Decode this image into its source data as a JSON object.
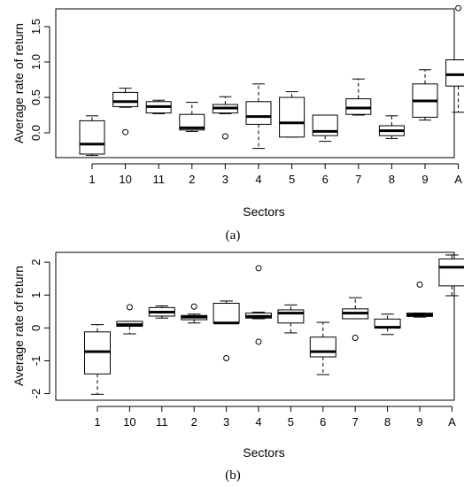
{
  "chart_data": [
    {
      "type": "boxplot",
      "caption": "(a)",
      "xlabel": "Sectors",
      "ylabel": "Average rate of return",
      "ylim": [
        -0.35,
        1.75
      ],
      "yticks": [
        0.0,
        0.5,
        1.0,
        1.5
      ],
      "ytick_labels": [
        "0.0",
        "0.5",
        "1.0",
        "1.5"
      ],
      "categories": [
        "1",
        "10",
        "11",
        "2",
        "3",
        "4",
        "5",
        "6",
        "7",
        "8",
        "9",
        "A"
      ],
      "boxes": [
        {
          "whisker_low": -0.32,
          "q1": -0.3,
          "median": -0.16,
          "q3": 0.17,
          "whisker_high": 0.24,
          "outliers": []
        },
        {
          "whisker_low": 0.36,
          "q1": 0.37,
          "median": 0.44,
          "q3": 0.57,
          "whisker_high": 0.63,
          "outliers": [
            0.01
          ]
        },
        {
          "whisker_low": 0.27,
          "q1": 0.28,
          "median": 0.37,
          "q3": 0.44,
          "whisker_high": 0.46,
          "outliers": []
        },
        {
          "whisker_low": 0.02,
          "q1": 0.04,
          "median": 0.07,
          "q3": 0.26,
          "whisker_high": 0.43,
          "outliers": []
        },
        {
          "whisker_low": 0.27,
          "q1": 0.28,
          "median": 0.35,
          "q3": 0.4,
          "whisker_high": 0.51,
          "outliers": [
            -0.05
          ]
        },
        {
          "whisker_low": -0.22,
          "q1": 0.12,
          "median": 0.23,
          "q3": 0.44,
          "whisker_high": 0.69,
          "outliers": []
        },
        {
          "whisker_low": -0.06,
          "q1": -0.06,
          "median": 0.14,
          "q3": 0.5,
          "whisker_high": 0.58,
          "outliers": []
        },
        {
          "whisker_low": -0.12,
          "q1": -0.04,
          "median": 0.02,
          "q3": 0.25,
          "whisker_high": 0.25,
          "outliers": []
        },
        {
          "whisker_low": 0.25,
          "q1": 0.26,
          "median": 0.35,
          "q3": 0.48,
          "whisker_high": 0.76,
          "outliers": []
        },
        {
          "whisker_low": -0.08,
          "q1": -0.04,
          "median": 0.03,
          "q3": 0.1,
          "whisker_high": 0.24,
          "outliers": []
        },
        {
          "whisker_low": 0.18,
          "q1": 0.22,
          "median": 0.45,
          "q3": 0.69,
          "whisker_high": 0.89,
          "outliers": []
        },
        {
          "whisker_low": 0.29,
          "q1": 0.66,
          "median": 0.82,
          "q3": 1.03,
          "whisker_high": 1.03,
          "outliers": [
            1.76
          ]
        }
      ]
    },
    {
      "type": "boxplot",
      "caption": "(b)",
      "xlabel": "Sectors",
      "ylabel": "Average rate of return",
      "ylim": [
        -2.2,
        2.3
      ],
      "yticks": [
        -2,
        -1,
        0,
        1,
        2
      ],
      "ytick_labels": [
        "-2",
        "-1",
        "0",
        "1",
        "2"
      ],
      "categories": [
        "1",
        "10",
        "11",
        "2",
        "3",
        "4",
        "5",
        "6",
        "7",
        "8",
        "9",
        "A"
      ],
      "boxes": [
        {
          "whisker_low": -2.02,
          "q1": -1.4,
          "median": -0.72,
          "q3": -0.12,
          "whisker_high": 0.1,
          "outliers": []
        },
        {
          "whisker_low": -0.18,
          "q1": 0.05,
          "median": 0.1,
          "q3": 0.2,
          "whisker_high": 0.2,
          "outliers": [
            0.63
          ]
        },
        {
          "whisker_low": 0.3,
          "q1": 0.36,
          "median": 0.48,
          "q3": 0.62,
          "whisker_high": 0.67,
          "outliers": []
        },
        {
          "whisker_low": 0.15,
          "q1": 0.25,
          "median": 0.33,
          "q3": 0.38,
          "whisker_high": 0.42,
          "outliers": [
            0.65
          ]
        },
        {
          "whisker_low": 0.15,
          "q1": 0.15,
          "median": 0.15,
          "q3": 0.75,
          "whisker_high": 0.82,
          "outliers": [
            -0.92
          ]
        },
        {
          "whisker_low": 0.28,
          "q1": 0.3,
          "median": 0.35,
          "q3": 0.45,
          "whisker_high": 0.48,
          "outliers": [
            1.82,
            -0.42
          ]
        },
        {
          "whisker_low": -0.15,
          "q1": 0.15,
          "median": 0.45,
          "q3": 0.55,
          "whisker_high": 0.7,
          "outliers": []
        },
        {
          "whisker_low": -1.42,
          "q1": -0.88,
          "median": -0.72,
          "q3": -0.28,
          "whisker_high": 0.17,
          "outliers": []
        },
        {
          "whisker_low": 0.28,
          "q1": 0.28,
          "median": 0.45,
          "q3": 0.58,
          "whisker_high": 0.92,
          "outliers": [
            -0.3
          ]
        },
        {
          "whisker_low": -0.2,
          "q1": 0.0,
          "median": 0.02,
          "q3": 0.27,
          "whisker_high": 0.42,
          "outliers": []
        },
        {
          "whisker_low": 0.33,
          "q1": 0.35,
          "median": 0.4,
          "q3": 0.45,
          "whisker_high": 0.45,
          "outliers": [
            1.32
          ]
        },
        {
          "whisker_low": 0.98,
          "q1": 1.28,
          "median": 1.85,
          "q3": 2.1,
          "whisker_high": 2.22,
          "outliers": []
        }
      ]
    }
  ]
}
